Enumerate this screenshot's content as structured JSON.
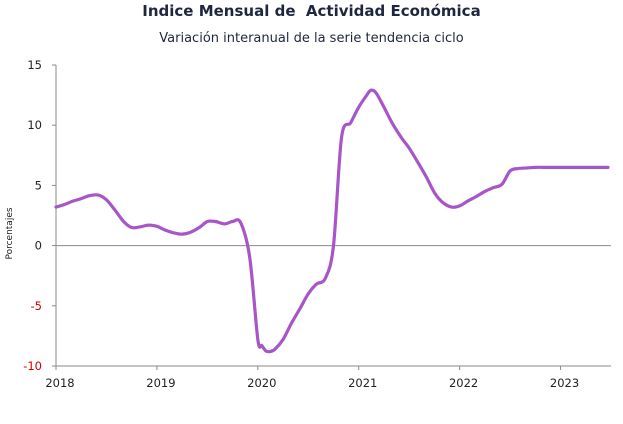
{
  "title": "Indice Mensual de  Actividad Económica",
  "subtitle": "Variación interanual de la serie tendencia ciclo",
  "chart_data": {
    "type": "line",
    "ylabel": "Porcentajes",
    "ylim": [
      -10,
      15
    ],
    "xlim": [
      2018,
      2023.5
    ],
    "yticks": [
      {
        "value": 15,
        "label": "15"
      },
      {
        "value": 10,
        "label": "10"
      },
      {
        "value": 5,
        "label": "5"
      },
      {
        "value": 0,
        "label": "0"
      },
      {
        "value": -5,
        "label": "-5"
      },
      {
        "value": -10,
        "label": "-10"
      }
    ],
    "xticks": [
      {
        "value": 2018,
        "label": "2018"
      },
      {
        "value": 2019,
        "label": "2019"
      },
      {
        "value": 2020,
        "label": "2020"
      },
      {
        "value": 2021,
        "label": "2021"
      },
      {
        "value": 2022,
        "label": "2022"
      },
      {
        "value": 2023,
        "label": "2023"
      }
    ],
    "negative_tick_color": "#cc0000",
    "line_color": "#a855c8",
    "zero_line": true,
    "grid": false,
    "series": [
      {
        "x": [
          2018.0,
          2018.08,
          2018.17,
          2018.25,
          2018.33,
          2018.42,
          2018.5,
          2018.58,
          2018.67,
          2018.75,
          2018.83,
          2018.92,
          2019.0,
          2019.08,
          2019.17,
          2019.25,
          2019.33,
          2019.42,
          2019.5,
          2019.58,
          2019.67,
          2019.75,
          2019.83,
          2019.92,
          2020.0,
          2020.04,
          2020.08,
          2020.12,
          2020.17,
          2020.25,
          2020.33,
          2020.42,
          2020.5,
          2020.58,
          2020.67,
          2020.75,
          2020.83,
          2020.92,
          2021.0,
          2021.08,
          2021.12,
          2021.17,
          2021.25,
          2021.33,
          2021.42,
          2021.5,
          2021.58,
          2021.67,
          2021.75,
          2021.83,
          2021.92,
          2022.0,
          2022.08,
          2022.17,
          2022.25,
          2022.33,
          2022.42,
          2022.5,
          2022.58,
          2022.67,
          2022.75,
          2022.83,
          2022.92,
          2023.0,
          2023.08,
          2023.17,
          2023.25,
          2023.33,
          2023.42,
          2023.47
        ],
        "y": [
          3.2,
          3.4,
          3.7,
          3.9,
          4.15,
          4.2,
          3.8,
          3.0,
          2.0,
          1.5,
          1.55,
          1.7,
          1.6,
          1.3,
          1.05,
          0.95,
          1.1,
          1.5,
          2.0,
          2.0,
          1.8,
          2.0,
          1.9,
          -1.0,
          -7.8,
          -8.3,
          -8.75,
          -8.8,
          -8.6,
          -7.8,
          -6.5,
          -5.2,
          -4.0,
          -3.2,
          -2.7,
          0.0,
          9.0,
          10.2,
          11.5,
          12.5,
          12.9,
          12.7,
          11.5,
          10.2,
          9.0,
          8.1,
          7.0,
          5.7,
          4.4,
          3.6,
          3.2,
          3.3,
          3.7,
          4.1,
          4.5,
          4.8,
          5.1,
          6.2,
          6.4,
          6.45,
          6.5,
          6.5,
          6.5,
          6.5,
          6.5,
          6.5,
          6.5,
          6.5,
          6.5,
          6.5
        ]
      }
    ]
  }
}
